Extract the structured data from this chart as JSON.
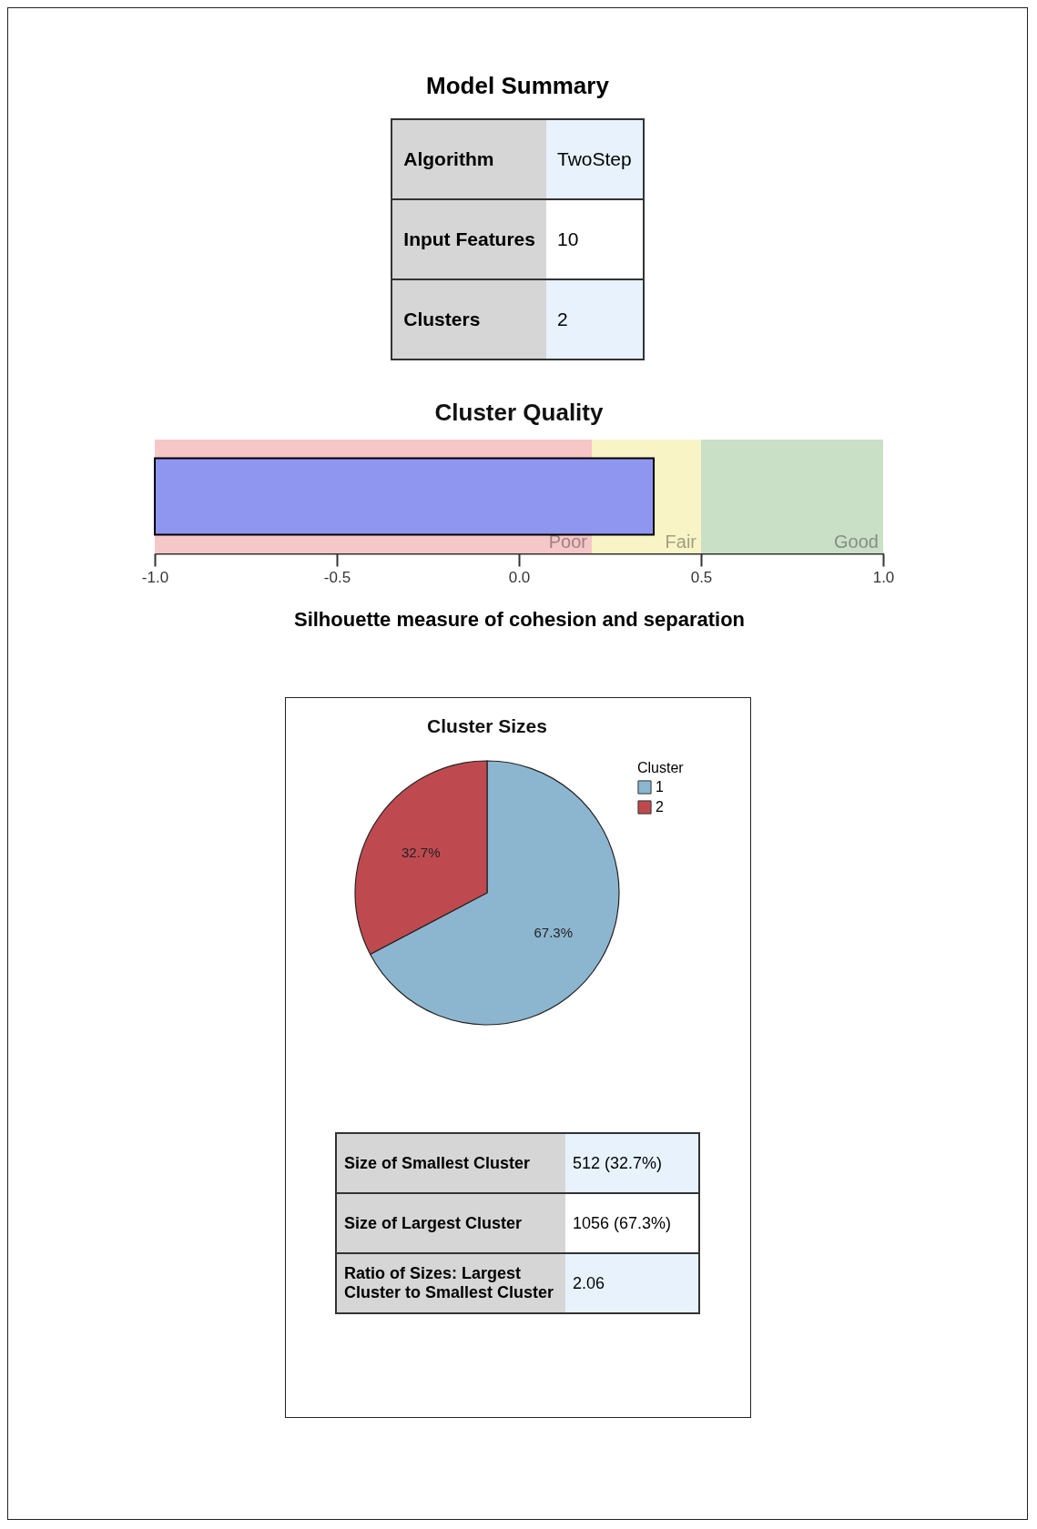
{
  "chart_data": [
    {
      "type": "other",
      "title": "Model Summary",
      "annotations": [
        "Algorithm",
        "TwoStep",
        "Input Features",
        "10",
        "Clusters",
        "2"
      ]
    },
    {
      "type": "bar",
      "title": "Cluster Quality",
      "xlabel": "Silhouette measure of cohesion and separation",
      "orientation": "horizontal",
      "categories": [
        null
      ],
      "base": [
        -1
      ],
      "values": [
        1.37
      ],
      "color": "#8f96f0",
      "xlim": [
        -1,
        1
      ],
      "xticks": [
        {
          "value": -1,
          "label": "-1.0"
        },
        {
          "value": -0.5,
          "label": "-0.5"
        },
        {
          "value": 0,
          "label": "0.0"
        },
        {
          "value": 0.5,
          "label": "0.5"
        },
        {
          "value": 1,
          "label": "1.0"
        }
      ],
      "tick_labels": "x",
      "bands": [
        {
          "axis": "x",
          "from": -1,
          "to": 0.2,
          "label": "Poor",
          "color": "#f6c7c7"
        },
        {
          "axis": "x",
          "from": 0.2,
          "to": 0.5,
          "label": "Fair",
          "color": "#f8f4c6"
        },
        {
          "axis": "x",
          "from": 0.5,
          "to": 1,
          "label": "Good",
          "color": "#c9dfc6"
        }
      ]
    },
    {
      "type": "pie",
      "title": "Cluster Sizes",
      "legend_title": "Cluster",
      "legend": "top right",
      "categories": [
        "1",
        "2"
      ],
      "values": [
        67.3,
        32.7
      ],
      "colors": [
        "#8cb6cf",
        "#be4a50"
      ],
      "value_labels": [
        "67.3%",
        "32.7%"
      ],
      "annotations": [
        "Size of Smallest Cluster",
        "512 (32.7%)",
        "Size of Largest Cluster",
        "1056 (67.3%)",
        "Ratio of Sizes: Largest Cluster to Smallest Cluster",
        "2.06"
      ]
    }
  ]
}
